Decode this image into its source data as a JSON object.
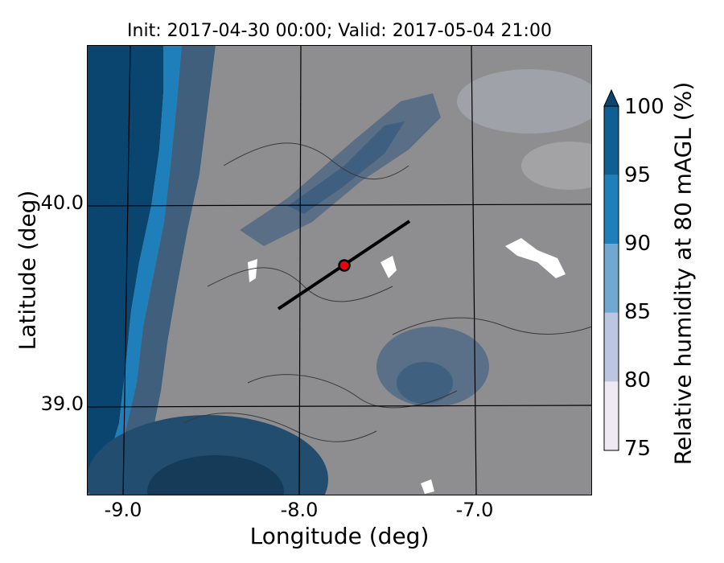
{
  "title": "Init: 2017-04-30 00:00; Valid: 2017-05-04 21:00",
  "xlabel": "Longitude (deg)",
  "ylabel": "Latitude (deg)",
  "xticks": [
    "-9.0",
    "-8.0",
    "-7.0"
  ],
  "yticks": [
    "40.0",
    "39.0"
  ],
  "colorbar": {
    "label": "Relative humidity at 80 mAGL (%)",
    "ticks": [
      "75",
      "80",
      "85",
      "90",
      "95",
      "100"
    ],
    "levels": [
      75,
      80,
      85,
      90,
      95,
      100
    ],
    "colors": [
      "#efe9f4",
      "#bcc6e0",
      "#71a8d2",
      "#1f7fbb",
      "#0f5f94",
      "#0a4570"
    ],
    "extend": "max"
  },
  "map": {
    "background_color": "#8e8e90",
    "ocean_color": "#0a4570",
    "coast_color": "#1f7fbb",
    "cross_section_line_color": "#000000",
    "marker_fill": "#e8000b",
    "marker_edge": "#000000"
  },
  "chart_data": {
    "type": "heatmap",
    "title": "Init: 2017-04-30 00:00; Valid: 2017-05-04 21:00",
    "xlabel": "Longitude (deg)",
    "ylabel": "Latitude (deg)",
    "xlim": [
      -9.2,
      -6.35
    ],
    "ylim": [
      38.55,
      40.8
    ],
    "xticks": [
      -9.0,
      -8.0,
      -7.0
    ],
    "yticks": [
      40.0,
      39.0
    ],
    "colorbar_label": "Relative humidity at 80 mAGL (%)",
    "colorbar_levels": [
      75,
      80,
      85,
      90,
      95,
      100
    ],
    "cross_section": {
      "start": [
        -8.12,
        39.48
      ],
      "end": [
        -7.35,
        39.92
      ]
    },
    "marker": {
      "lon": -7.75,
      "lat": 39.7
    },
    "grid": true
  }
}
